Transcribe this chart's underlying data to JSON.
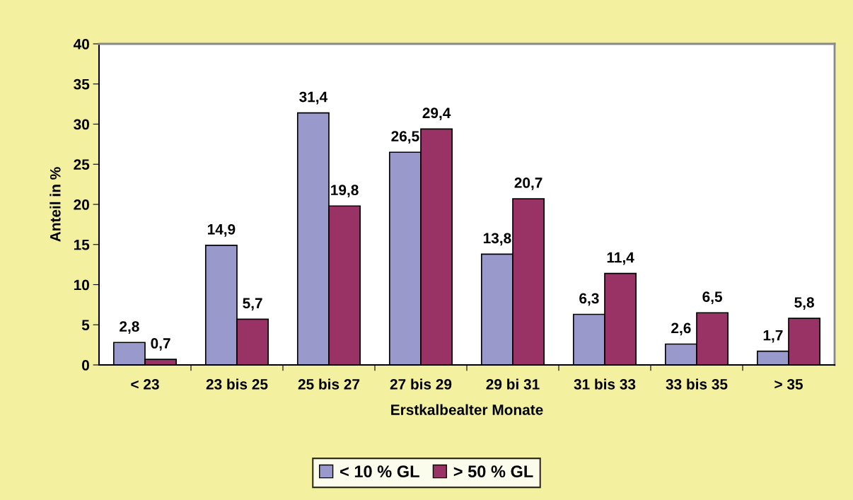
{
  "chart_data": {
    "type": "bar",
    "xlabel": "Erstkalbealter Monate",
    "ylabel": "Anteil in %",
    "categories": [
      "< 23",
      "23 bis 25",
      "25 bis 27",
      "27 bis 29",
      "29 bi 31",
      "31 bis 33",
      "33 bis 35",
      "> 35"
    ],
    "series": [
      {
        "name": "< 10 % GL",
        "color": "#9999cc",
        "values": [
          2.8,
          14.9,
          31.4,
          26.5,
          13.8,
          6.3,
          2.6,
          1.7
        ],
        "value_labels": [
          "2,8",
          "14,9",
          "31,4",
          "26,5",
          "13,8",
          "6,3",
          "2,6",
          "1,7"
        ]
      },
      {
        "name": "> 50 % GL",
        "color": "#993366",
        "values": [
          0.7,
          5.7,
          19.8,
          29.4,
          20.7,
          11.4,
          6.5,
          5.8
        ],
        "value_labels": [
          "0,7",
          "5,7",
          "19,8",
          "29,4",
          "20,7",
          "11,4",
          "6,5",
          "5,8"
        ]
      }
    ],
    "ylim": [
      0,
      40
    ],
    "yticks": [
      0,
      5,
      10,
      15,
      20,
      25,
      30,
      35,
      40
    ],
    "grid": false,
    "legend": "bottom"
  }
}
